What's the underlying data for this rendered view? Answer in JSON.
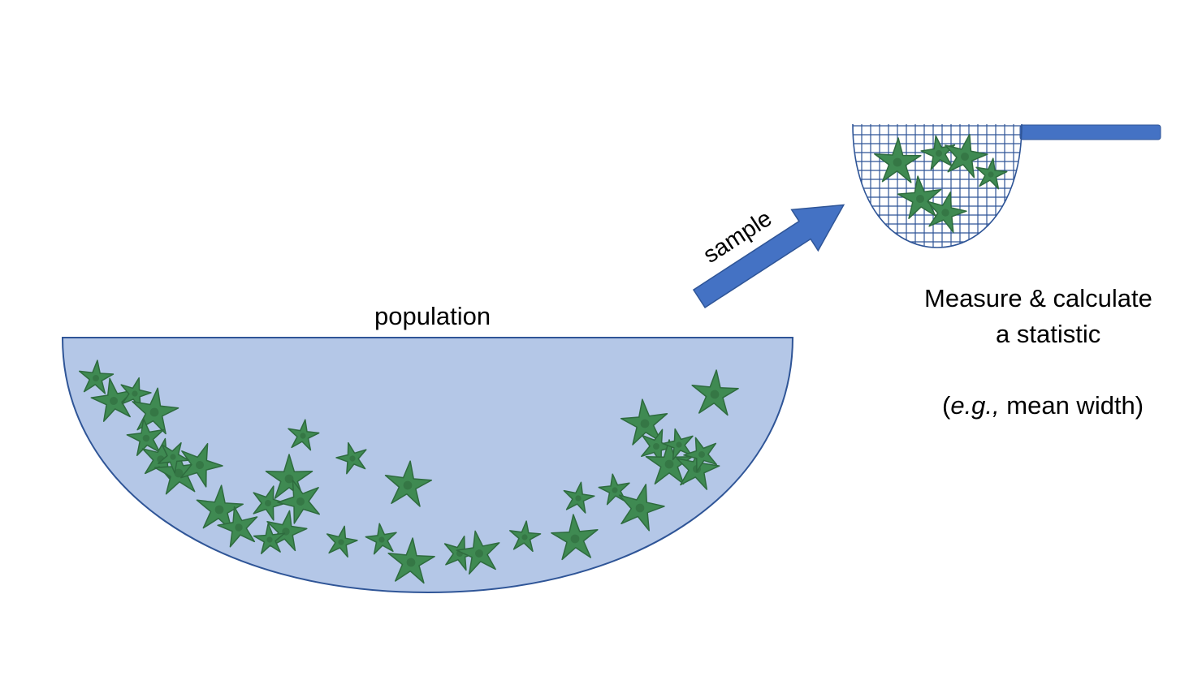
{
  "labels": {
    "population": "population",
    "sample": "sample",
    "measure_line1": "Measure & calculate",
    "measure_line2": "a statistic",
    "example_open": "(",
    "example_italic": "e.g.,",
    "example_rest": " mean width)"
  },
  "colors": {
    "water_fill": "#b4c7e7",
    "water_stroke": "#2f5597",
    "arrow_fill": "#4472c4",
    "arrow_stroke": "#2f5597",
    "net_mesh": "#2f5597",
    "handle_fill": "#4472c4",
    "starfish_fill": "#3f8a52",
    "starfish_dark": "#2e6b3e"
  },
  "icons": {
    "population_container": "bowl-of-water",
    "sample_container": "fishing-net",
    "arrow": "right-up-arrow",
    "organism": "starfish-icon"
  }
}
